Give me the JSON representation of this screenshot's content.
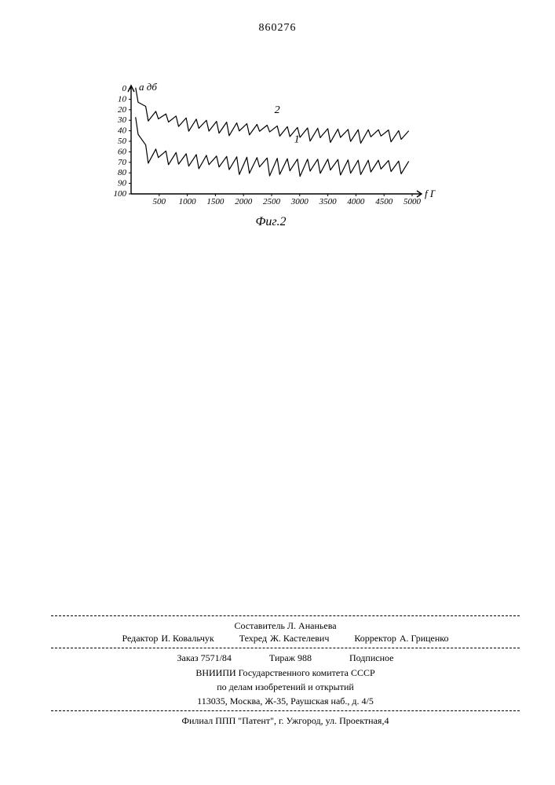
{
  "patent_number": "860276",
  "chart": {
    "type": "line",
    "fig_label": "Фиг.2",
    "y_label": "a дб",
    "x_label": "f Гц",
    "x_ticks": [
      "500",
      "1000",
      "1500",
      "2000",
      "2500",
      "3000",
      "3500",
      "4000",
      "4500",
      "5000"
    ],
    "y_ticks": [
      "0",
      "10",
      "20",
      "30",
      "40",
      "50",
      "60",
      "70",
      "80",
      "90",
      "100"
    ],
    "x_range": [
      0,
      5000
    ],
    "y_range": [
      0,
      100
    ],
    "series": [
      {
        "id": "1",
        "label": "1",
        "label_pos_x": 2900,
        "label_pos_y": 51,
        "color": "#000000",
        "line_width": 1.2,
        "base": [
          [
            80,
            30
          ],
          [
            200,
            55
          ],
          [
            400,
            60
          ],
          [
            700,
            63
          ],
          [
            1000,
            65
          ],
          [
            1500,
            67
          ],
          [
            2000,
            68
          ],
          [
            2500,
            69
          ],
          [
            3000,
            70
          ],
          [
            3500,
            70
          ],
          [
            4000,
            71
          ],
          [
            4500,
            71
          ],
          [
            4800,
            72
          ]
        ],
        "ripple_period": 180,
        "ripple_min": 4,
        "ripple_max": 14
      },
      {
        "id": "2",
        "label": "2",
        "label_pos_x": 2550,
        "label_pos_y": 23,
        "color": "#000000",
        "line_width": 1.2,
        "base": [
          [
            80,
            2
          ],
          [
            200,
            18
          ],
          [
            400,
            24
          ],
          [
            700,
            28
          ],
          [
            1000,
            31
          ],
          [
            1500,
            34
          ],
          [
            2000,
            36
          ],
          [
            2500,
            38
          ],
          [
            3000,
            40
          ],
          [
            3500,
            41
          ],
          [
            4000,
            42
          ],
          [
            4500,
            42
          ],
          [
            4800,
            43
          ]
        ],
        "ripple_period": 180,
        "ripple_min": 3,
        "ripple_max": 10
      }
    ],
    "axis_color": "#000000",
    "axis_width": 1.4,
    "background": "#ffffff"
  },
  "footer": {
    "compiler": {
      "role": "Составитель",
      "name": "Л. Ананьева"
    },
    "editor": {
      "role": "Редактор",
      "name": "И. Ковальчук"
    },
    "tech_ed": {
      "role": "Техред",
      "name": "Ж. Кастелевич"
    },
    "corrector": {
      "role": "Корректор",
      "name": "А. Гриценко"
    },
    "order": {
      "label": "Заказ",
      "value": "7571/84"
    },
    "tirazh": {
      "label": "Тираж",
      "value": "988"
    },
    "subscription": "Подписное",
    "org_line1": "ВНИИПИ Государственного комитета СССР",
    "org_line2": "по делам изобретений и открытий",
    "address": "113035, Москва, Ж-35, Раушская наб., д. 4/5",
    "branch": "Филиал ППП \"Патент\", г. Ужгород, ул. Проектная,4"
  }
}
